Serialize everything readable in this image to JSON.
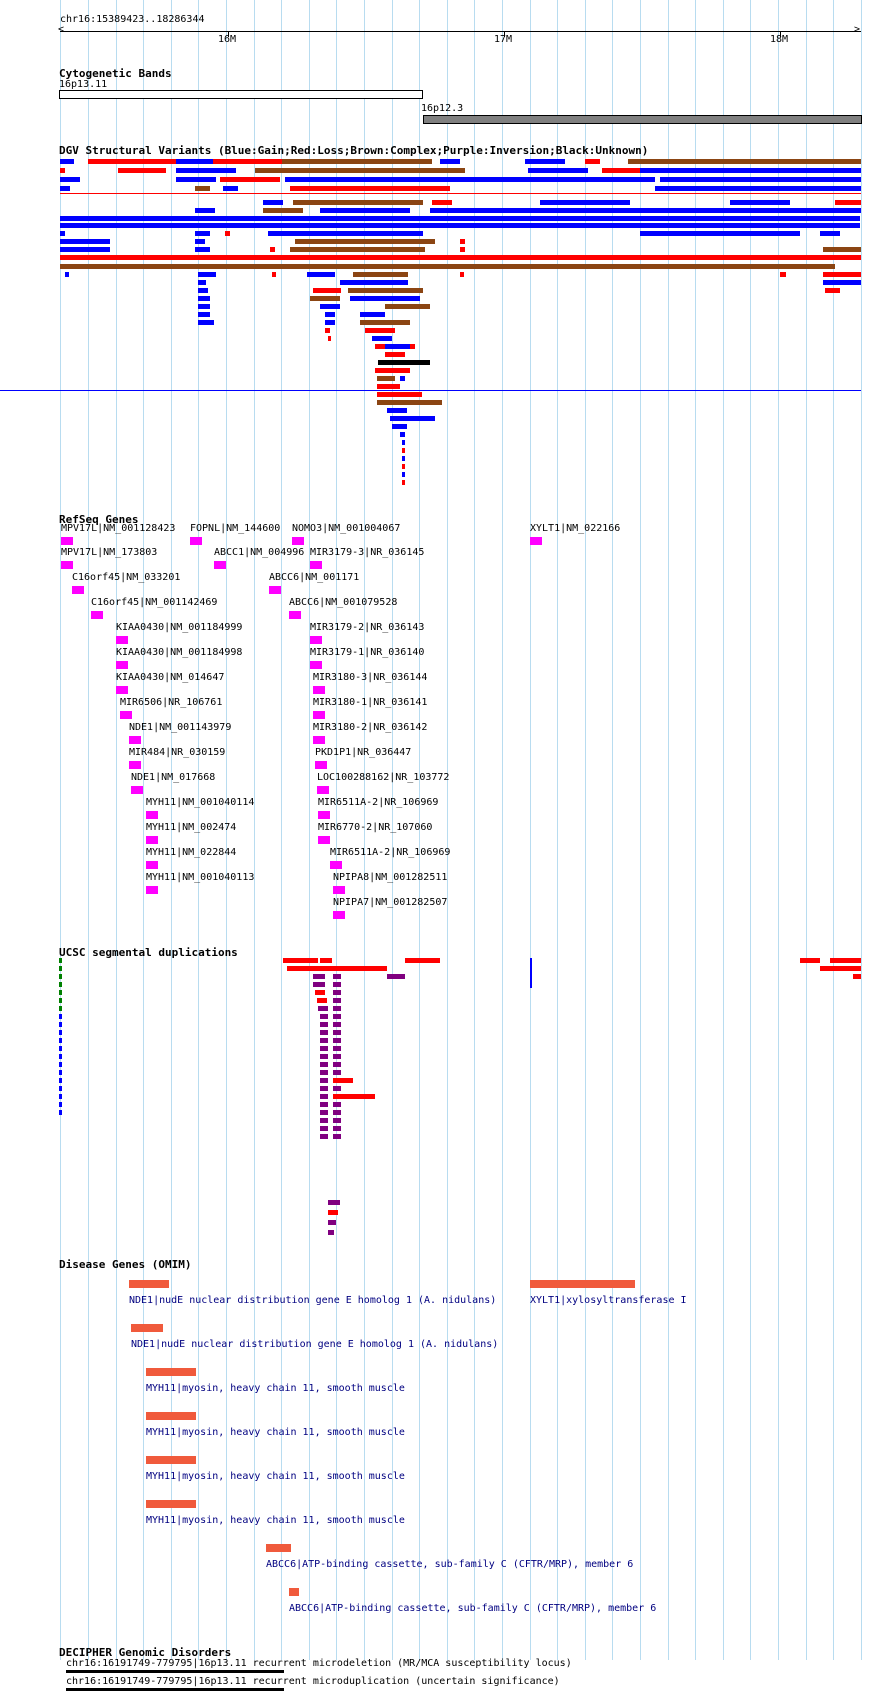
{
  "ruler": {
    "range_label": "chr16:15389423..18286344",
    "ticks": [
      "16M",
      "17M",
      "18M"
    ]
  },
  "cytoband": {
    "title": "Cytogenetic Bands",
    "band1": "16p13.11",
    "band2": "16p12.3"
  },
  "dgv": {
    "title": "DGV Structural Variants (Blue:Gain;Red:Loss;Brown:Complex;Purple:Inversion;Black:Unknown)"
  },
  "refseq": {
    "title": "RefSeq Genes",
    "genes": [
      "MPV17L|NM_001128423",
      "FOPNL|NM_144600",
      "NOMO3|NM_001004067",
      "XYLT1|NM_022166",
      "MPV17L|NM_173803",
      "ABCC1|NM_004996",
      "MIR3179-3|NR_036145",
      "C16orf45|NM_033201",
      "ABCC6|NM_001171",
      "C16orf45|NM_001142469",
      "ABCC6|NM_001079528",
      "KIAA0430|NM_001184999",
      "MIR3179-2|NR_036143",
      "KIAA0430|NM_001184998",
      "MIR3179-1|NR_036140",
      "KIAA0430|NM_014647",
      "MIR3180-3|NR_036144",
      "MIR6506|NR_106761",
      "MIR3180-1|NR_036141",
      "NDE1|NM_001143979",
      "MIR3180-2|NR_036142",
      "MIR484|NR_030159",
      "PKD1P1|NR_036447",
      "NDE1|NM_017668",
      "LOC100288162|NR_103772",
      "MYH11|NM_001040114",
      "MIR6511A-2|NR_106969",
      "MYH11|NM_002474",
      "MIR6770-2|NR_107060",
      "MYH11|NM_022844",
      "MIR6511A-2|NR_106969",
      "MYH11|NM_001040113",
      "NPIPA8|NM_001282511",
      "NPIPA7|NM_001282507"
    ]
  },
  "segdup": {
    "title": "UCSC segmental duplications"
  },
  "omim": {
    "title": "Disease Genes (OMIM)",
    "entries": [
      "NDE1|nudE nuclear distribution gene E homolog 1 (A. nidulans)",
      "XYLT1|xylosyltransferase I",
      "NDE1|nudE nuclear distribution gene E homolog 1 (A. nidulans)",
      "MYH11|myosin, heavy chain 11, smooth muscle",
      "MYH11|myosin, heavy chain 11, smooth muscle",
      "MYH11|myosin, heavy chain 11, smooth muscle",
      "MYH11|myosin, heavy chain 11, smooth muscle",
      "ABCC6|ATP-binding cassette, sub-family C (CFTR/MRP), member 6",
      "ABCC6|ATP-binding cassette, sub-family C (CFTR/MRP), member 6"
    ]
  },
  "decipher": {
    "title": "DECIPHER Genomic Disorders",
    "entries": [
      "chr16:16191749-779795|16p13.11 recurrent microdeletion (MR/MCA susceptibility locus)",
      "chr16:16191749-779795|16p13.11 recurrent microduplication (uncertain significance)"
    ]
  },
  "colors": {
    "gain": "#0000ff",
    "loss": "#ff0000",
    "complex": "#8b4513",
    "inversion": "#800080",
    "unknown": "#000000",
    "gene": "#ff00ff",
    "omim": "#f05a3c",
    "grid": "#b8dcf0"
  }
}
